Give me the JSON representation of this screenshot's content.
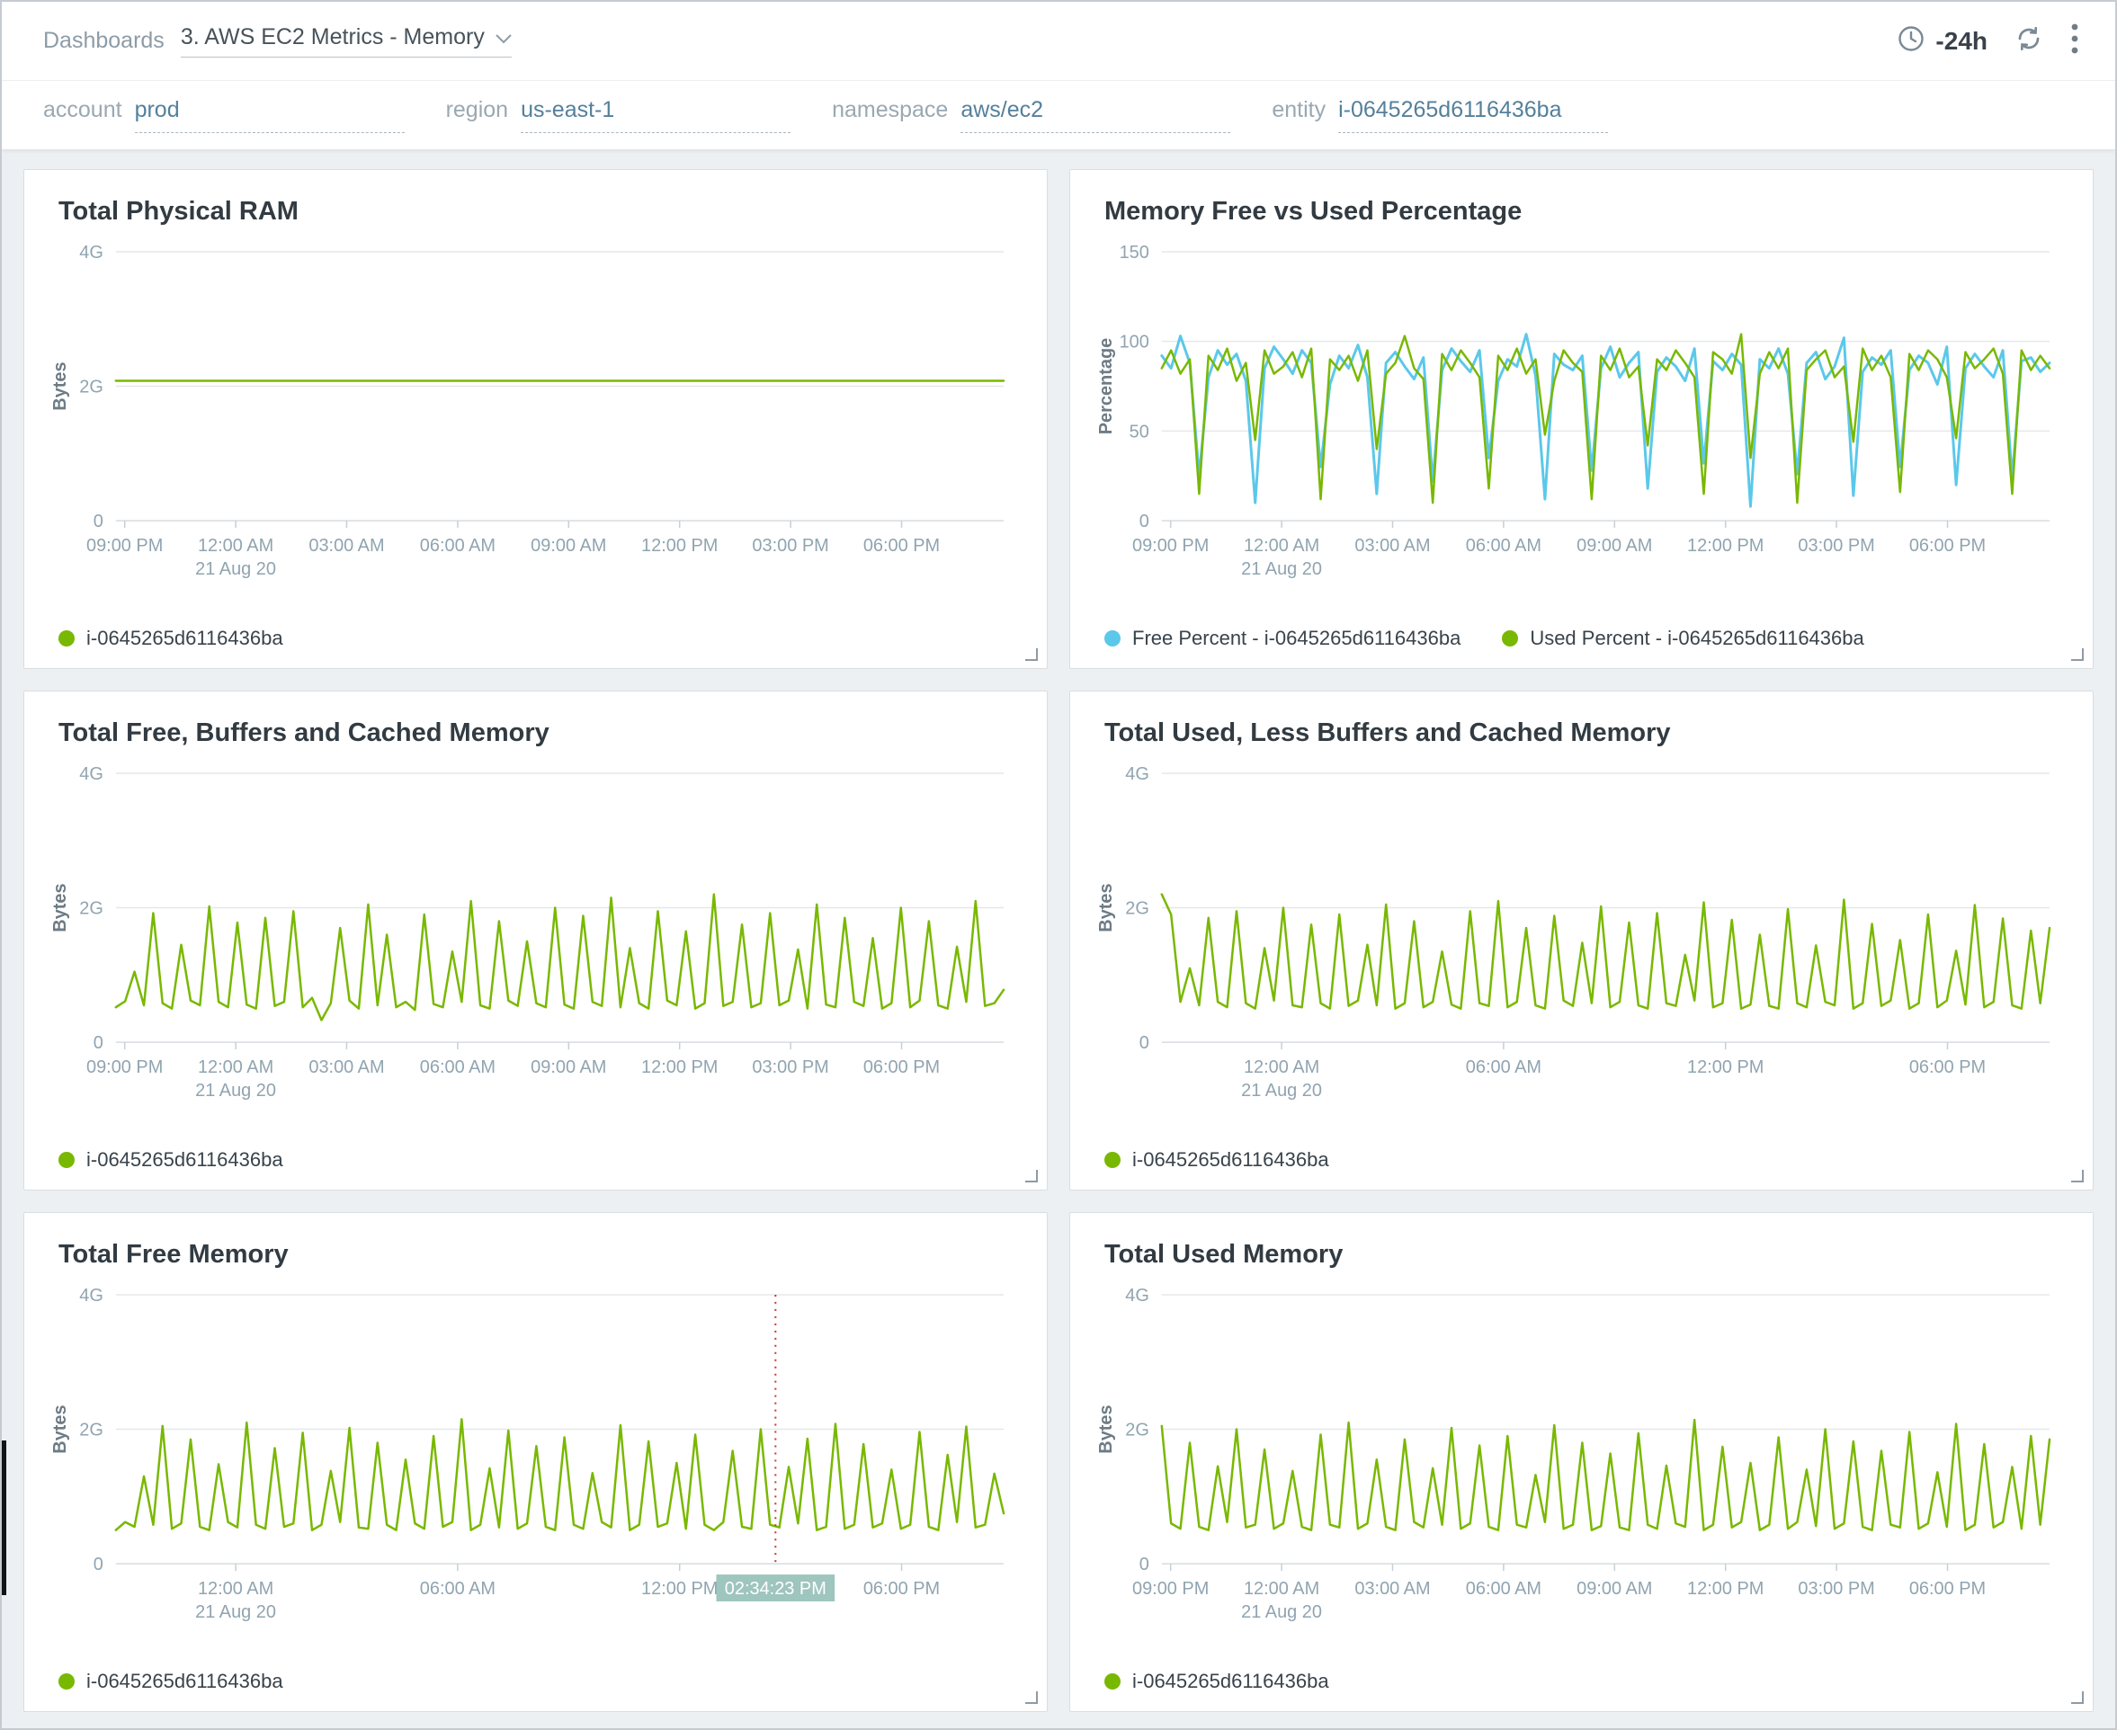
{
  "header": {
    "breadcrumb": "Dashboards",
    "dashboard_title": "3. AWS EC2 Metrics - Memory",
    "time_range": "-24h"
  },
  "icons": {
    "dashboard_select": "chevron-down-icon",
    "time_picker": "clock-icon",
    "refresh": "refresh-icon",
    "more_menu": "kebab-menu-icon"
  },
  "filters": [
    {
      "label": "account",
      "value": "prod"
    },
    {
      "label": "region",
      "value": "us-east-1"
    },
    {
      "label": "namespace",
      "value": "aws/ec2"
    },
    {
      "label": "entity",
      "value": "i-0645265d6116436ba"
    }
  ],
  "colors": {
    "green": "#79b800",
    "blue": "#5bc8ea",
    "crosshair_red": "#cc3333",
    "tooltip_bg": "#9ec5be"
  },
  "chart_data": [
    {
      "type": "line",
      "title": "Total Physical RAM",
      "ylabel": "Bytes",
      "unit": "G",
      "ymax": 4,
      "yticks": [
        {
          "value": 0,
          "label": "0"
        },
        {
          "value": 2,
          "label": "2G"
        },
        {
          "value": 4,
          "label": "4G"
        }
      ],
      "xticks": [
        {
          "p": 0.01,
          "label": "09:00 PM"
        },
        {
          "p": 0.135,
          "label": "12:00 AM",
          "sub": "21 Aug 20"
        },
        {
          "p": 0.26,
          "label": "03:00 AM"
        },
        {
          "p": 0.385,
          "label": "06:00 AM"
        },
        {
          "p": 0.51,
          "label": "09:00 AM"
        },
        {
          "p": 0.635,
          "label": "12:00 PM"
        },
        {
          "p": 0.76,
          "label": "03:00 PM"
        },
        {
          "p": 0.885,
          "label": "06:00 PM"
        }
      ],
      "series": [
        {
          "name": "i-0645265d6116436ba",
          "color": "green",
          "values": [
            2.08,
            2.08
          ]
        }
      ]
    },
    {
      "type": "line",
      "title": "Memory Free vs Used Percentage",
      "ylabel": "Percentage",
      "unit": "%",
      "ymax": 150,
      "yticks": [
        {
          "value": 0,
          "label": "0"
        },
        {
          "value": 50,
          "label": "50"
        },
        {
          "value": 100,
          "label": "100"
        },
        {
          "value": 150,
          "label": "150"
        }
      ],
      "xticks": [
        {
          "p": 0.01,
          "label": "09:00 PM"
        },
        {
          "p": 0.135,
          "label": "12:00 AM",
          "sub": "21 Aug 20"
        },
        {
          "p": 0.26,
          "label": "03:00 AM"
        },
        {
          "p": 0.385,
          "label": "06:00 AM"
        },
        {
          "p": 0.51,
          "label": "09:00 AM"
        },
        {
          "p": 0.635,
          "label": "12:00 PM"
        },
        {
          "p": 0.76,
          "label": "03:00 PM"
        },
        {
          "p": 0.885,
          "label": "06:00 PM"
        }
      ],
      "series": [
        {
          "name": "Free Percent - i-0645265d6116436ba",
          "color": "blue",
          "values": [
            92,
            85,
            103,
            88,
            25,
            80,
            95,
            87,
            93,
            78,
            10,
            85,
            97,
            90,
            82,
            95,
            88,
            30,
            76,
            92,
            85,
            98,
            80,
            15,
            88,
            94,
            86,
            79,
            91,
            22,
            84,
            96,
            89,
            83,
            95,
            35,
            78,
            90,
            86,
            104,
            81,
            12,
            93,
            87,
            84,
            92,
            28,
            85,
            97,
            80,
            88,
            94,
            18,
            83,
            91,
            86,
            78,
            96,
            32,
            89,
            84,
            93,
            87,
            8,
            90,
            85,
            96,
            82,
            26,
            88,
            94,
            79,
            86,
            102,
            14,
            83,
            91,
            87,
            95,
            30,
            84,
            92,
            88,
            76,
            97,
            20,
            85,
            93,
            86,
            80,
            95,
            24,
            89,
            91,
            83,
            88
          ]
        },
        {
          "name": "Used Percent - i-0645265d6116436ba",
          "color": "green",
          "values": [
            85,
            95,
            82,
            90,
            15,
            92,
            84,
            96,
            78,
            88,
            45,
            95,
            82,
            86,
            94,
            80,
            96,
            12,
            90,
            84,
            92,
            78,
            95,
            40,
            82,
            88,
            103,
            85,
            79,
            10,
            93,
            84,
            95,
            88,
            80,
            18,
            92,
            84,
            96,
            82,
            90,
            48,
            78,
            95,
            88,
            83,
            12,
            92,
            84,
            96,
            80,
            86,
            42,
            90,
            84,
            95,
            88,
            80,
            15,
            94,
            90,
            82,
            104,
            35,
            82,
            94,
            85,
            96,
            10,
            84,
            90,
            95,
            80,
            86,
            44,
            96,
            84,
            92,
            80,
            16,
            93,
            84,
            95,
            90,
            80,
            46,
            94,
            85,
            90,
            96,
            82,
            15,
            95,
            84,
            92,
            85
          ]
        }
      ]
    },
    {
      "type": "line",
      "title": "Total Free, Buffers and Cached Memory",
      "ylabel": "Bytes",
      "unit": "G",
      "ymax": 4,
      "yticks": [
        {
          "value": 0,
          "label": "0"
        },
        {
          "value": 2,
          "label": "2G"
        },
        {
          "value": 4,
          "label": "4G"
        }
      ],
      "xticks": [
        {
          "p": 0.01,
          "label": "09:00 PM"
        },
        {
          "p": 0.135,
          "label": "12:00 AM",
          "sub": "21 Aug 20"
        },
        {
          "p": 0.26,
          "label": "03:00 AM"
        },
        {
          "p": 0.385,
          "label": "06:00 AM"
        },
        {
          "p": 0.51,
          "label": "09:00 AM"
        },
        {
          "p": 0.635,
          "label": "12:00 PM"
        },
        {
          "p": 0.76,
          "label": "03:00 PM"
        },
        {
          "p": 0.885,
          "label": "06:00 PM"
        }
      ],
      "series": [
        {
          "name": "i-0645265d6116436ba",
          "color": "green",
          "values": [
            0.52,
            0.61,
            1.05,
            0.55,
            1.92,
            0.58,
            0.5,
            1.45,
            0.62,
            0.55,
            2.02,
            0.6,
            0.52,
            1.78,
            0.56,
            0.5,
            1.85,
            0.54,
            0.6,
            1.95,
            0.52,
            0.66,
            0.33,
            0.58,
            1.7,
            0.62,
            0.5,
            2.05,
            0.55,
            1.6,
            0.52,
            0.6,
            0.48,
            1.9,
            0.57,
            0.52,
            1.35,
            0.6,
            2.1,
            0.55,
            0.5,
            1.8,
            0.62,
            0.54,
            1.5,
            0.58,
            0.52,
            2.0,
            0.56,
            0.5,
            1.88,
            0.6,
            0.54,
            2.15,
            0.52,
            1.4,
            0.58,
            0.5,
            1.95,
            0.62,
            0.55,
            1.65,
            0.5,
            0.58,
            2.2,
            0.54,
            0.6,
            1.75,
            0.52,
            0.58,
            1.92,
            0.55,
            0.62,
            1.38,
            0.5,
            2.05,
            0.56,
            0.52,
            1.85,
            0.6,
            0.54,
            1.55,
            0.5,
            0.58,
            2.0,
            0.52,
            0.62,
            1.8,
            0.55,
            0.5,
            1.42,
            0.6,
            2.1,
            0.54,
            0.58,
            0.78
          ]
        }
      ]
    },
    {
      "type": "line",
      "title": "Total Used, Less Buffers and Cached Memory",
      "ylabel": "Bytes",
      "unit": "G",
      "ymax": 4,
      "yticks": [
        {
          "value": 0,
          "label": "0"
        },
        {
          "value": 2,
          "label": "2G"
        },
        {
          "value": 4,
          "label": "4G"
        }
      ],
      "xticks": [
        {
          "p": 0.135,
          "label": "12:00 AM",
          "sub": "21 Aug 20"
        },
        {
          "p": 0.385,
          "label": "06:00 AM"
        },
        {
          "p": 0.635,
          "label": "12:00 PM"
        },
        {
          "p": 0.885,
          "label": "06:00 PM"
        }
      ],
      "series": [
        {
          "name": "i-0645265d6116436ba",
          "color": "green",
          "values": [
            2.2,
            1.9,
            0.6,
            1.1,
            0.55,
            1.85,
            0.6,
            0.52,
            1.95,
            0.58,
            0.5,
            1.4,
            0.62,
            2.0,
            0.55,
            0.52,
            1.75,
            0.58,
            0.5,
            1.9,
            0.54,
            0.62,
            1.45,
            0.55,
            2.05,
            0.5,
            0.58,
            1.8,
            0.52,
            0.6,
            1.35,
            0.56,
            0.5,
            1.95,
            0.58,
            0.54,
            2.1,
            0.52,
            0.6,
            1.7,
            0.55,
            0.5,
            1.88,
            0.62,
            0.54,
            1.48,
            0.58,
            2.02,
            0.52,
            0.6,
            1.78,
            0.55,
            0.5,
            1.92,
            0.58,
            0.54,
            1.3,
            0.62,
            2.08,
            0.52,
            0.58,
            1.82,
            0.5,
            0.56,
            1.6,
            0.54,
            0.5,
            1.98,
            0.58,
            0.52,
            1.44,
            0.6,
            0.55,
            2.12,
            0.5,
            0.58,
            1.76,
            0.54,
            0.62,
            1.52,
            0.5,
            0.58,
            1.9,
            0.52,
            0.62,
            1.36,
            0.56,
            2.04,
            0.52,
            0.6,
            1.84,
            0.55,
            0.5,
            1.66,
            0.58,
            1.7
          ]
        }
      ]
    },
    {
      "type": "line",
      "title": "Total Free Memory",
      "ylabel": "Bytes",
      "unit": "G",
      "ymax": 4,
      "yticks": [
        {
          "value": 0,
          "label": "0"
        },
        {
          "value": 2,
          "label": "2G"
        },
        {
          "value": 4,
          "label": "4G"
        }
      ],
      "xticks": [
        {
          "p": 0.135,
          "label": "12:00 AM",
          "sub": "21 Aug 20"
        },
        {
          "p": 0.385,
          "label": "06:00 AM"
        },
        {
          "p": 0.635,
          "label": "12:00 PM"
        },
        {
          "p": 0.885,
          "label": "06:00 PM"
        }
      ],
      "crosshair": {
        "position": 0.743,
        "label": "02:34:23 PM"
      },
      "series": [
        {
          "name": "i-0645265d6116436ba",
          "color": "green",
          "values": [
            0.5,
            0.62,
            0.55,
            1.3,
            0.58,
            2.05,
            0.52,
            0.6,
            1.85,
            0.55,
            0.5,
            1.48,
            0.62,
            0.54,
            2.1,
            0.58,
            0.52,
            1.72,
            0.55,
            0.6,
            1.95,
            0.5,
            0.58,
            1.38,
            0.62,
            2.02,
            0.54,
            0.52,
            1.8,
            0.58,
            0.5,
            1.55,
            0.6,
            0.52,
            1.9,
            0.55,
            0.62,
            2.15,
            0.5,
            0.58,
            1.42,
            0.54,
            1.98,
            0.52,
            0.6,
            1.75,
            0.55,
            0.5,
            1.88,
            0.58,
            0.52,
            1.35,
            0.62,
            0.54,
            2.06,
            0.5,
            0.58,
            1.82,
            0.55,
            0.6,
            1.5,
            0.52,
            1.92,
            0.58,
            0.5,
            0.62,
            1.68,
            0.55,
            0.52,
            2.0,
            0.58,
            0.54,
            1.44,
            0.6,
            1.86,
            0.5,
            0.55,
            2.08,
            0.52,
            0.58,
            1.78,
            0.54,
            0.6,
            1.4,
            0.52,
            0.58,
            1.96,
            0.55,
            0.5,
            1.62,
            0.62,
            2.04,
            0.54,
            0.58,
            1.34,
            0.75
          ]
        }
      ]
    },
    {
      "type": "line",
      "title": "Total Used Memory",
      "ylabel": "Bytes",
      "unit": "G",
      "ymax": 4,
      "yticks": [
        {
          "value": 0,
          "label": "0"
        },
        {
          "value": 2,
          "label": "2G"
        },
        {
          "value": 4,
          "label": "4G"
        }
      ],
      "xticks": [
        {
          "p": 0.01,
          "label": "09:00 PM"
        },
        {
          "p": 0.135,
          "label": "12:00 AM",
          "sub": "21 Aug 20"
        },
        {
          "p": 0.26,
          "label": "03:00 AM"
        },
        {
          "p": 0.385,
          "label": "06:00 AM"
        },
        {
          "p": 0.51,
          "label": "09:00 AM"
        },
        {
          "p": 0.635,
          "label": "12:00 PM"
        },
        {
          "p": 0.76,
          "label": "03:00 PM"
        },
        {
          "p": 0.885,
          "label": "06:00 PM"
        }
      ],
      "series": [
        {
          "name": "i-0645265d6116436ba",
          "color": "green",
          "values": [
            2.05,
            0.6,
            0.52,
            1.8,
            0.55,
            0.5,
            1.45,
            0.62,
            2.0,
            0.54,
            0.58,
            1.7,
            0.52,
            0.6,
            1.38,
            0.55,
            0.5,
            1.92,
            0.58,
            0.54,
            2.1,
            0.52,
            0.6,
            1.55,
            0.55,
            0.5,
            1.85,
            0.62,
            0.54,
            1.42,
            0.58,
            2.02,
            0.52,
            0.6,
            1.76,
            0.55,
            0.5,
            1.9,
            0.58,
            0.54,
            1.32,
            0.62,
            2.06,
            0.52,
            0.58,
            1.8,
            0.5,
            0.56,
            1.64,
            0.54,
            0.5,
            1.94,
            0.58,
            0.52,
            1.46,
            0.6,
            0.55,
            2.14,
            0.5,
            0.58,
            1.74,
            0.54,
            0.62,
            1.5,
            0.5,
            0.58,
            1.88,
            0.52,
            0.62,
            1.4,
            0.56,
            2.0,
            0.52,
            0.6,
            1.82,
            0.55,
            0.5,
            1.68,
            0.58,
            0.54,
            1.96,
            0.52,
            0.6,
            1.36,
            0.55,
            2.08,
            0.5,
            0.58,
            1.78,
            0.54,
            0.62,
            1.44,
            0.52,
            1.9,
            0.58,
            1.85
          ]
        }
      ]
    }
  ]
}
